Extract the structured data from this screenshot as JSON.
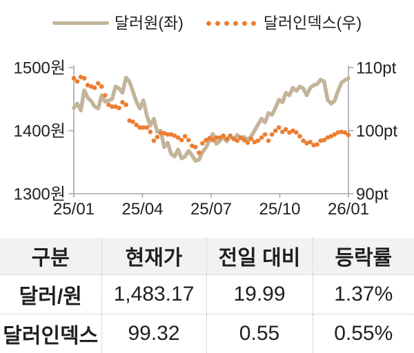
{
  "colors": {
    "text": "#1f1f1f",
    "table_header_bg": "#f2f2f2",
    "table_border": "#bdbdbd"
  },
  "chart_data": {
    "type": "line",
    "title": "",
    "x_tick_labels": [
      "25/01",
      "25/04",
      "25/07",
      "25/10",
      "26/01"
    ],
    "axis_color": "#a6a6a6",
    "axes": {
      "left": {
        "unit": "원",
        "ticks": [
          1500,
          1400,
          1300
        ],
        "labels": [
          "1500원",
          "1400원",
          "1300원"
        ],
        "min": 1300,
        "max": 1500
      },
      "right": {
        "unit": "pt",
        "ticks": [
          110,
          100,
          90
        ],
        "labels": [
          "110pt",
          "100pt",
          "90pt"
        ],
        "min": 90,
        "max": 110
      }
    },
    "series": [
      {
        "name": "달러원(좌)",
        "axis": "left",
        "style": "solid",
        "color": "#c3b49a",
        "values": [
          1436,
          1443,
          1432,
          1464,
          1452,
          1447,
          1438,
          1435,
          1456,
          1446,
          1448,
          1450,
          1470,
          1467,
          1460,
          1484,
          1478,
          1462,
          1446,
          1435,
          1448,
          1424,
          1408,
          1419,
          1398,
          1400,
          1374,
          1381,
          1363,
          1359,
          1370,
          1356,
          1359,
          1368,
          1361,
          1352,
          1354,
          1366,
          1373,
          1385,
          1395,
          1379,
          1384,
          1390,
          1383,
          1392,
          1386,
          1393,
          1388,
          1390,
          1385,
          1391,
          1400,
          1410,
          1419,
          1413,
          1428,
          1425,
          1436,
          1449,
          1445,
          1460,
          1456,
          1468,
          1463,
          1470,
          1467,
          1456,
          1468,
          1472,
          1474,
          1481,
          1478,
          1449,
          1443,
          1447,
          1463,
          1476,
          1480,
          1483.17
        ]
      },
      {
        "name": "달러인덱스(우)",
        "axis": "right",
        "style": "dotted",
        "color": "#ed7d31",
        "values": [
          108.3,
          107.8,
          108.5,
          108.3,
          107.2,
          107.0,
          106.8,
          107.5,
          107.0,
          105.6,
          104.1,
          103.8,
          103.8,
          103.6,
          104.5,
          104.1,
          101.6,
          101.4,
          100.9,
          100.5,
          100.5,
          100.5,
          99.8,
          98.4,
          99.0,
          99.6,
          99.6,
          99.4,
          99.4,
          99.2,
          98.9,
          98.5,
          99.1,
          98.5,
          97.6,
          97.4,
          96.5,
          98.0,
          98.5,
          98.8,
          98.5,
          98.9,
          98.9,
          99.2,
          98.7,
          99.2,
          98.7,
          98.4,
          98.9,
          98.5,
          98.1,
          98.7,
          98.2,
          98.4,
          98.9,
          99.4,
          98.4,
          99.4,
          100.0,
          100.5,
          99.8,
          100.2,
          99.7,
          100.0,
          99.7,
          99.1,
          98.4,
          98.0,
          98.2,
          97.7,
          97.8,
          98.4,
          98.5,
          98.9,
          99.1,
          99.4,
          99.7,
          99.8,
          99.7,
          99.32
        ]
      }
    ]
  },
  "table": {
    "headers": [
      "구분",
      "현재가",
      "전일 대비",
      "등락률"
    ],
    "rows": [
      [
        "달러/원",
        "1,483.17",
        "19.99",
        "1.37%"
      ],
      [
        "달러인덱스",
        "99.32",
        "0.55",
        "0.55%"
      ]
    ]
  }
}
